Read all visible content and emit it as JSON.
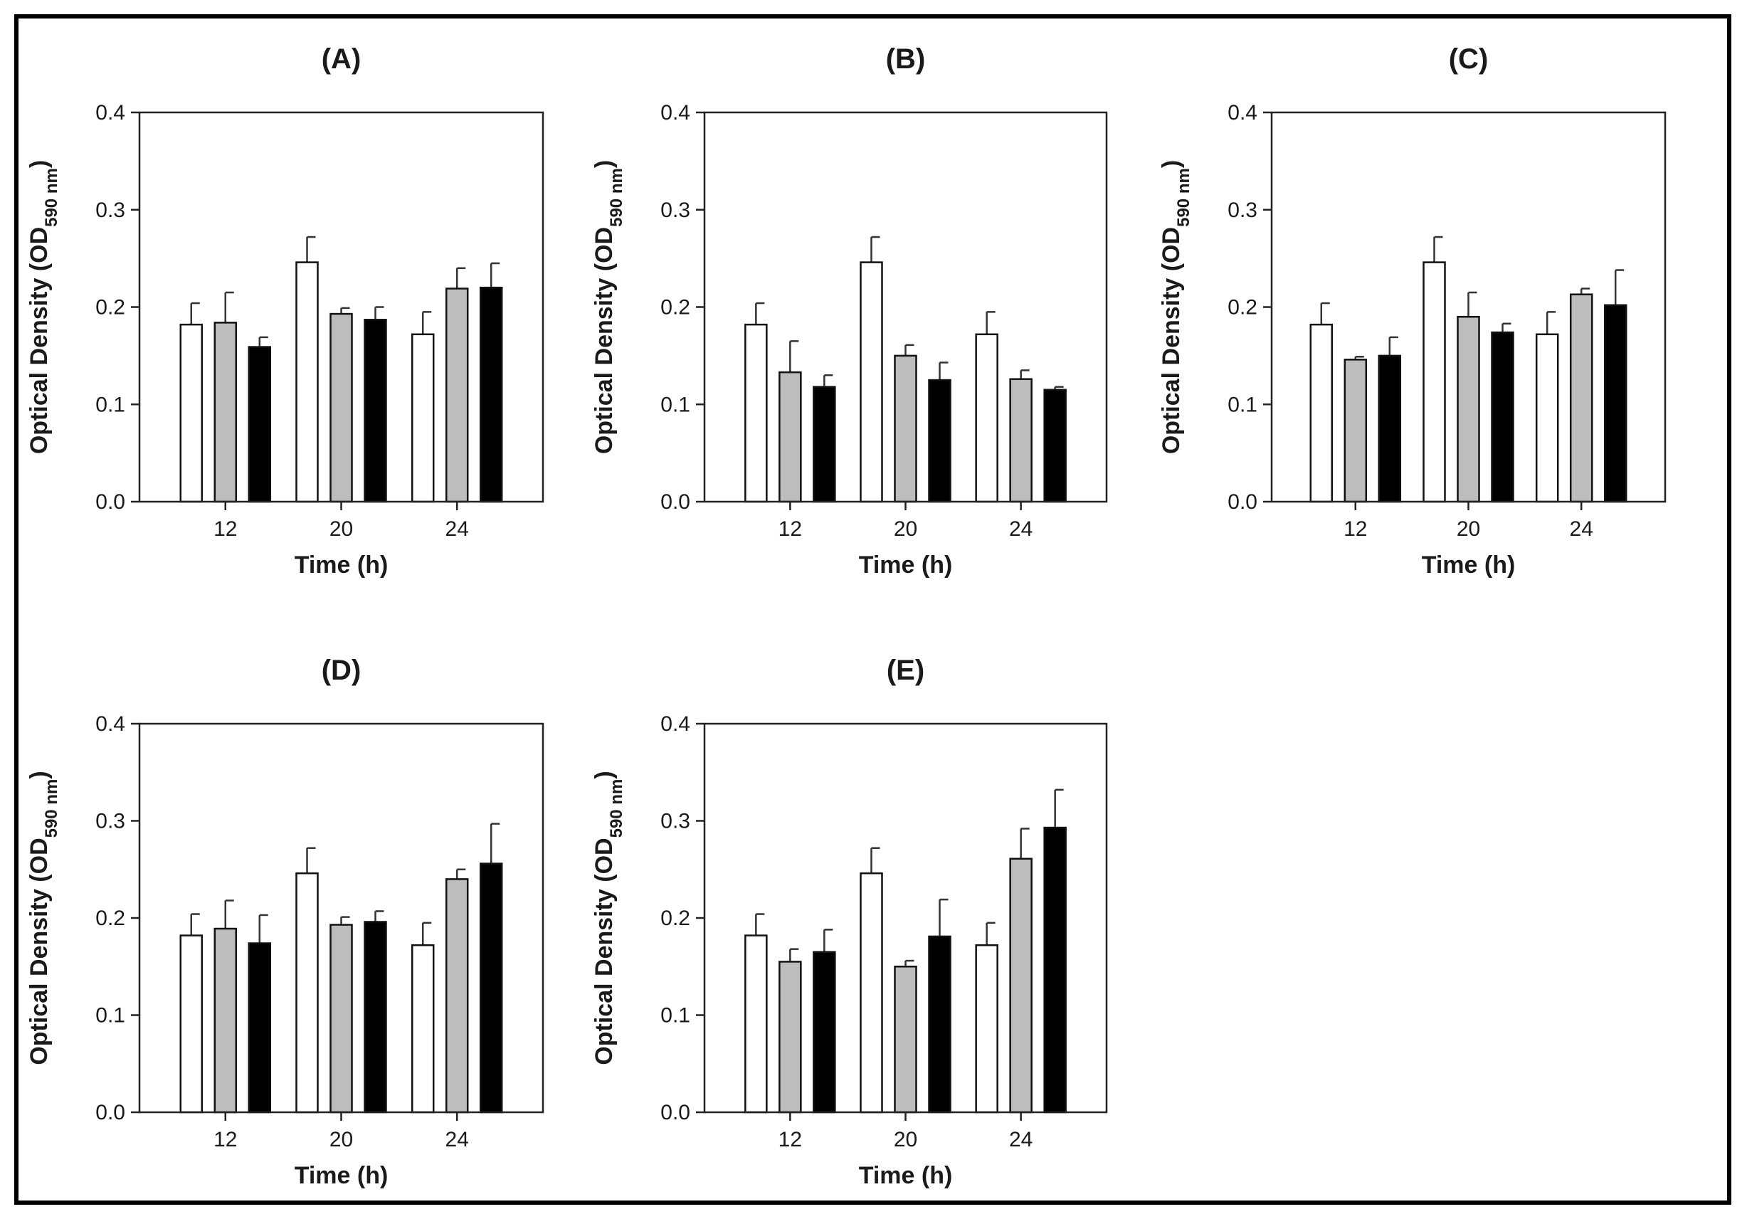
{
  "chart_data": [
    {
      "type": "bar",
      "title": "(A)",
      "xlabel": "Time (h)",
      "ylabel": "Optical Density (OD",
      "ylabel_sub": "590 nm",
      "ylabel_close": ")",
      "ylim": [
        0,
        0.4
      ],
      "yticks": [
        "0.0",
        "0.1",
        "0.2",
        "0.3",
        "0.4"
      ],
      "categories": [
        "12",
        "20",
        "24"
      ],
      "series": [
        {
          "name": "white",
          "color": "#ffffff",
          "values": [
            0.182,
            0.246,
            0.172
          ],
          "errors": [
            0.022,
            0.026,
            0.023
          ]
        },
        {
          "name": "grey",
          "color": "#bdbdbd",
          "values": [
            0.184,
            0.193,
            0.219
          ],
          "errors": [
            0.031,
            0.006,
            0.021
          ]
        },
        {
          "name": "black",
          "color": "#000000",
          "values": [
            0.159,
            0.187,
            0.22
          ],
          "errors": [
            0.01,
            0.013,
            0.025
          ]
        }
      ]
    },
    {
      "type": "bar",
      "title": "(B)",
      "xlabel": "Time (h)",
      "ylabel": "Optical Density (OD",
      "ylabel_sub": "590 nm",
      "ylabel_close": ")",
      "ylim": [
        0,
        0.4
      ],
      "yticks": [
        "0.0",
        "0.1",
        "0.2",
        "0.3",
        "0.4"
      ],
      "categories": [
        "12",
        "20",
        "24"
      ],
      "series": [
        {
          "name": "white",
          "color": "#ffffff",
          "values": [
            0.182,
            0.246,
            0.172
          ],
          "errors": [
            0.022,
            0.026,
            0.023
          ]
        },
        {
          "name": "grey",
          "color": "#bdbdbd",
          "values": [
            0.133,
            0.15,
            0.126
          ],
          "errors": [
            0.032,
            0.011,
            0.009
          ]
        },
        {
          "name": "black",
          "color": "#000000",
          "values": [
            0.118,
            0.125,
            0.115
          ],
          "errors": [
            0.012,
            0.018,
            0.003
          ]
        }
      ]
    },
    {
      "type": "bar",
      "title": "(C)",
      "xlabel": "Time (h)",
      "ylabel": "Optical Density (OD",
      "ylabel_sub": "590 nm",
      "ylabel_close": ")",
      "ylim": [
        0,
        0.4
      ],
      "yticks": [
        "0.0",
        "0.1",
        "0.2",
        "0.3",
        "0.4"
      ],
      "categories": [
        "12",
        "20",
        "24"
      ],
      "series": [
        {
          "name": "white",
          "color": "#ffffff",
          "values": [
            0.182,
            0.246,
            0.172
          ],
          "errors": [
            0.022,
            0.026,
            0.023
          ]
        },
        {
          "name": "grey",
          "color": "#bdbdbd",
          "values": [
            0.146,
            0.19,
            0.213
          ],
          "errors": [
            0.003,
            0.025,
            0.006
          ]
        },
        {
          "name": "black",
          "color": "#000000",
          "values": [
            0.15,
            0.174,
            0.202
          ],
          "errors": [
            0.019,
            0.009,
            0.036
          ]
        }
      ]
    },
    {
      "type": "bar",
      "title": "(D)",
      "xlabel": "Time (h)",
      "ylabel": "Optical Density (OD",
      "ylabel_sub": "590 nm",
      "ylabel_close": ")",
      "ylim": [
        0,
        0.4
      ],
      "yticks": [
        "0.0",
        "0.1",
        "0.2",
        "0.3",
        "0.4"
      ],
      "categories": [
        "12",
        "20",
        "24"
      ],
      "series": [
        {
          "name": "white",
          "color": "#ffffff",
          "values": [
            0.182,
            0.246,
            0.172
          ],
          "errors": [
            0.022,
            0.026,
            0.023
          ]
        },
        {
          "name": "grey",
          "color": "#bdbdbd",
          "values": [
            0.189,
            0.193,
            0.24
          ],
          "errors": [
            0.029,
            0.008,
            0.01
          ]
        },
        {
          "name": "black",
          "color": "#000000",
          "values": [
            0.174,
            0.196,
            0.256
          ],
          "errors": [
            0.029,
            0.011,
            0.041
          ]
        }
      ]
    },
    {
      "type": "bar",
      "title": "(E)",
      "xlabel": "Time (h)",
      "ylabel": "Optical Density (OD",
      "ylabel_sub": "590 nm",
      "ylabel_close": ")",
      "ylim": [
        0,
        0.4
      ],
      "yticks": [
        "0.0",
        "0.1",
        "0.2",
        "0.3",
        "0.4"
      ],
      "categories": [
        "12",
        "20",
        "24"
      ],
      "series": [
        {
          "name": "white",
          "color": "#ffffff",
          "values": [
            0.182,
            0.246,
            0.172
          ],
          "errors": [
            0.022,
            0.026,
            0.023
          ]
        },
        {
          "name": "grey",
          "color": "#bdbdbd",
          "values": [
            0.155,
            0.15,
            0.261
          ],
          "errors": [
            0.013,
            0.006,
            0.031
          ]
        },
        {
          "name": "black",
          "color": "#000000",
          "values": [
            0.165,
            0.181,
            0.293
          ],
          "errors": [
            0.023,
            0.038,
            0.039
          ]
        }
      ]
    }
  ]
}
